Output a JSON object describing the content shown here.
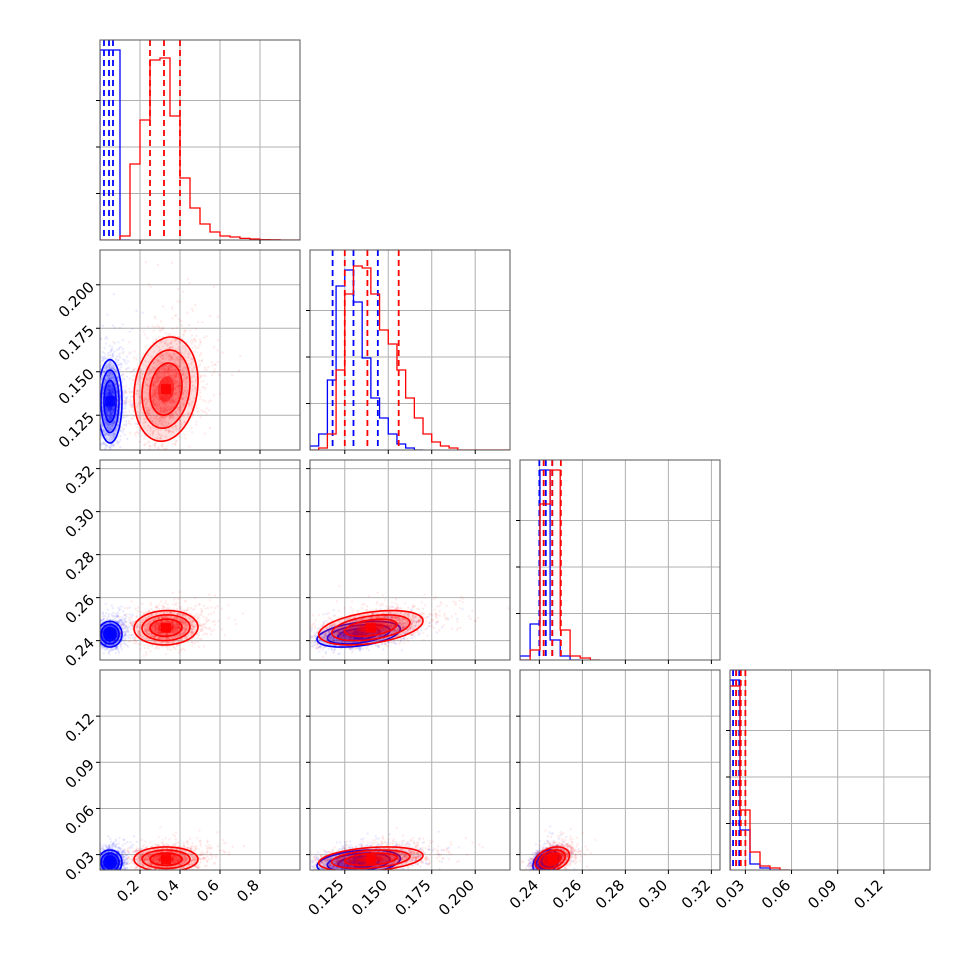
{
  "chart_data": {
    "type": "corner",
    "title": "",
    "grid": true,
    "legend": "none",
    "colors": {
      "blue": "#0000ff",
      "red": "#ff0000"
    },
    "parameters": [
      {
        "range": [
          0.0,
          1.0
        ],
        "ticks": [
          0.2,
          0.4,
          0.6,
          0.8
        ],
        "tick_labels": [
          "0.2",
          "0.4",
          "0.6",
          "0.8"
        ]
      },
      {
        "range": [
          0.105,
          0.22
        ],
        "ticks": [
          0.125,
          0.15,
          0.175,
          0.2
        ],
        "tick_labels": [
          "0.125",
          "0.150",
          "0.175",
          "0.200"
        ]
      },
      {
        "range": [
          0.231,
          0.324
        ],
        "ticks": [
          0.24,
          0.26,
          0.28,
          0.3,
          0.32
        ],
        "tick_labels": [
          "0.24",
          "0.26",
          "0.28",
          "0.30",
          "0.32"
        ]
      },
      {
        "range": [
          0.02,
          0.15
        ],
        "ticks": [
          0.03,
          0.06,
          0.09,
          0.12
        ],
        "tick_labels": [
          "0.03",
          "0.06",
          "0.09",
          "0.12"
        ]
      }
    ],
    "series": [
      {
        "color": "#0000ff",
        "mean": [
          0.05,
          0.133,
          0.243,
          0.025
        ],
        "std": [
          0.03,
          0.012,
          0.003,
          0.004
        ],
        "corr": [
          [
            0,
            1,
            0.0
          ],
          [
            0,
            2,
            0.0
          ],
          [
            0,
            3,
            0.0
          ],
          [
            1,
            2,
            0.4
          ],
          [
            1,
            3,
            0.3
          ],
          [
            2,
            3,
            0.3
          ]
        ],
        "quantiles": [
          [
            0.02,
            0.045,
            0.065
          ],
          [
            0.118,
            0.13,
            0.144
          ],
          [
            0.24,
            0.243,
            0.246
          ],
          [
            0.022,
            0.024,
            0.026
          ]
        ],
        "histograms": [
          {
            "edges": [
              0.0,
              0.05,
              0.1,
              0.15
            ],
            "values": [
              0.95,
              0.95,
              0.0
            ]
          },
          {
            "edges": [
              0.105,
              0.11,
              0.115,
              0.12,
              0.125,
              0.13,
              0.135,
              0.14,
              0.145,
              0.15,
              0.155,
              0.16,
              0.165,
              0.17
            ],
            "values": [
              0.02,
              0.08,
              0.35,
              0.82,
              0.9,
              0.74,
              0.46,
              0.26,
              0.16,
              0.08,
              0.03,
              0.01,
              0.0
            ]
          },
          {
            "edges": [
              0.231,
              0.2357,
              0.2403,
              0.245,
              0.2497,
              0.2543,
              0.259
            ],
            "values": [
              0.02,
              0.18,
              0.95,
              0.1,
              0.02,
              0.0
            ]
          },
          {
            "edges": [
              0.02,
              0.0265,
              0.033,
              0.0395,
              0.046,
              0.0525
            ],
            "values": [
              0.95,
              0.2,
              0.03,
              0.01,
              0.0
            ]
          }
        ]
      },
      {
        "color": "#ff0000",
        "mean": [
          0.33,
          0.14,
          0.246,
          0.027
        ],
        "std": [
          0.08,
          0.015,
          0.004,
          0.004
        ],
        "corr": [
          [
            0,
            1,
            0.15
          ],
          [
            0,
            2,
            0.05
          ],
          [
            0,
            3,
            0.0
          ],
          [
            1,
            2,
            0.4
          ],
          [
            1,
            3,
            0.3
          ],
          [
            2,
            3,
            0.3
          ]
        ],
        "quantiles": [
          [
            0.25,
            0.32,
            0.4
          ],
          [
            0.125,
            0.138,
            0.156
          ],
          [
            0.242,
            0.246,
            0.25
          ],
          [
            0.024,
            0.027,
            0.03
          ]
        ],
        "histograms": [
          {
            "edges": [
              0.0,
              0.05,
              0.1,
              0.15,
              0.2,
              0.25,
              0.3,
              0.35,
              0.4,
              0.45,
              0.5,
              0.55,
              0.6,
              0.65,
              0.7,
              0.75,
              0.8,
              0.85,
              0.9,
              0.95,
              1.0
            ],
            "values": [
              0.0,
              0.0,
              0.02,
              0.38,
              0.6,
              0.9,
              0.91,
              0.62,
              0.31,
              0.16,
              0.08,
              0.04,
              0.02,
              0.015,
              0.008,
              0.005,
              0.002,
              0.001,
              0.0,
              0.0
            ]
          },
          {
            "edges": [
              0.105,
              0.11,
              0.115,
              0.12,
              0.125,
              0.13,
              0.135,
              0.14,
              0.145,
              0.15,
              0.155,
              0.16,
              0.165,
              0.17,
              0.175,
              0.18,
              0.185,
              0.19,
              0.195,
              0.2,
              0.205,
              0.21,
              0.215,
              0.22
            ],
            "values": [
              0.0,
              0.01,
              0.08,
              0.4,
              0.78,
              0.92,
              0.91,
              0.78,
              0.6,
              0.53,
              0.4,
              0.26,
              0.16,
              0.08,
              0.04,
              0.02,
              0.01,
              0.0,
              0.0,
              0.0,
              0.0,
              0.0,
              0.0
            ]
          },
          {
            "edges": [
              0.231,
              0.2357,
              0.2403,
              0.245,
              0.2497,
              0.2543,
              0.259,
              0.2637,
              0.2683
            ],
            "values": [
              0.0,
              0.05,
              0.78,
              0.95,
              0.15,
              0.02,
              0.01,
              0.0
            ]
          },
          {
            "edges": [
              0.02,
              0.0265,
              0.033,
              0.0395,
              0.046,
              0.0525,
              0.059
            ],
            "values": [
              0.92,
              0.3,
              0.09,
              0.02,
              0.01,
              0.0
            ]
          }
        ]
      }
    ]
  }
}
